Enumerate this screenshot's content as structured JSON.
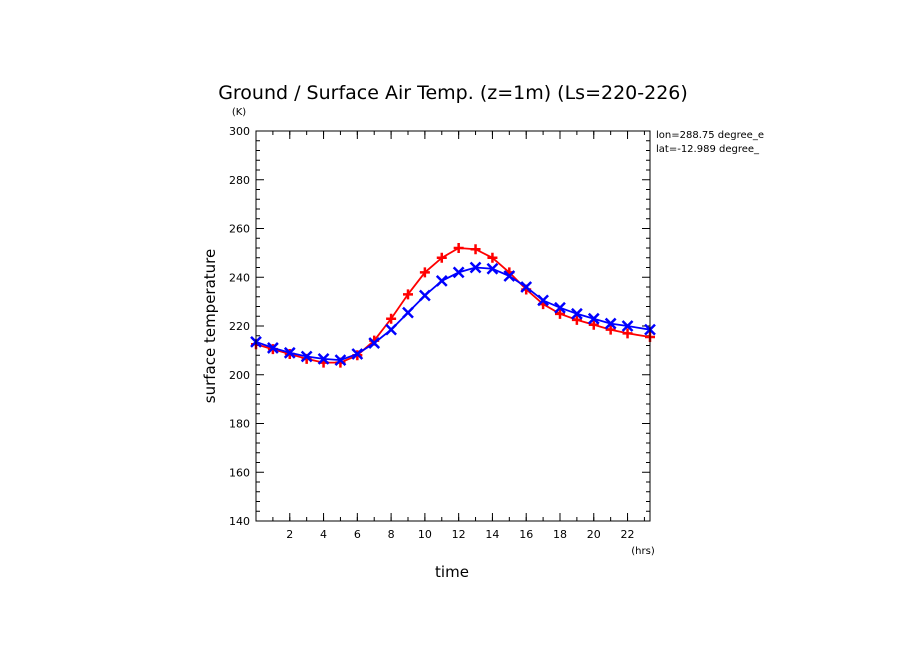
{
  "chart_data": {
    "type": "line",
    "title": "Ground / Surface Air Temp. (z=1m) (Ls=220-226)",
    "xlabel": "time",
    "ylabel": "surface temperature",
    "xunit": "(hrs)",
    "yunit": "(K)",
    "xlim": [
      0,
      23.33
    ],
    "ylim": [
      140,
      300
    ],
    "xticks": [
      "2",
      "4",
      "6",
      "8",
      "10",
      "12",
      "14",
      "16",
      "18",
      "20",
      "22"
    ],
    "yticks": [
      "140",
      "160",
      "180",
      "200",
      "220",
      "240",
      "260",
      "280",
      "300"
    ],
    "annotations": [
      "lon=288.75 degree_e",
      "lat=-12.989 degree_"
    ],
    "series": [
      {
        "color": "#ff0000",
        "marker": "plus",
        "x": [
          0,
          1,
          2,
          3,
          4,
          5,
          6,
          7,
          8,
          9,
          10,
          11,
          12,
          13,
          14,
          15,
          16,
          17,
          18,
          19,
          20,
          21,
          22,
          23.33
        ],
        "values": [
          212.5,
          210.5,
          208.5,
          206.5,
          205.0,
          205.0,
          208.0,
          214.0,
          223.0,
          233.0,
          242.0,
          248.0,
          252.0,
          251.5,
          248.0,
          242.0,
          235.0,
          229.0,
          225.0,
          222.5,
          220.5,
          218.5,
          217.0,
          215.5
        ]
      },
      {
        "color": "#0000ff",
        "marker": "x",
        "x": [
          0,
          1,
          2,
          3,
          4,
          5,
          6,
          7,
          8,
          9,
          10,
          11,
          12,
          13,
          14,
          15,
          16,
          17,
          18,
          19,
          20,
          21,
          22,
          23.33
        ],
        "values": [
          213.5,
          211.0,
          209.0,
          207.5,
          206.5,
          206.0,
          208.5,
          213.0,
          218.5,
          225.5,
          232.5,
          238.5,
          242.0,
          244.0,
          243.5,
          240.5,
          236.0,
          230.5,
          227.5,
          225.0,
          223.0,
          221.0,
          220.0,
          218.5
        ]
      }
    ]
  }
}
